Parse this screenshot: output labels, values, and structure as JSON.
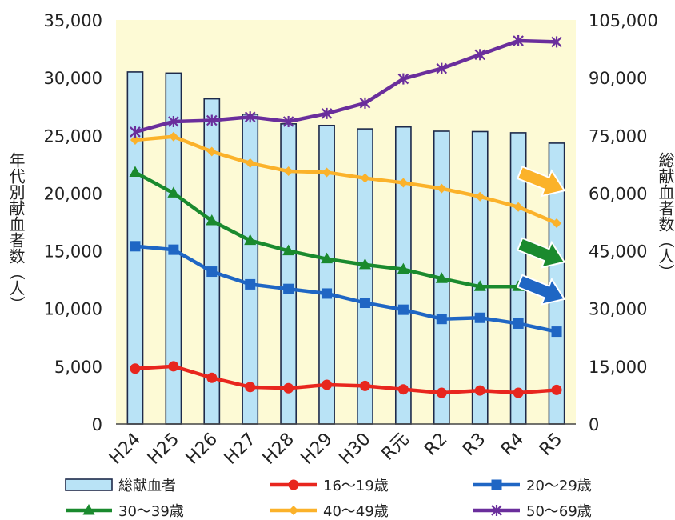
{
  "chart_data": {
    "type": "bar",
    "categories": [
      "H24",
      "H25",
      "H26",
      "H27",
      "H28",
      "H29",
      "H30",
      "R元",
      "R2",
      "R3",
      "R4",
      "R5"
    ],
    "left_axis": {
      "label": "年代別献血者数（人）",
      "ylim": [
        0,
        35000
      ],
      "ticks": [
        "0",
        "5,000",
        "10,000",
        "15,000",
        "20,000",
        "25,000",
        "30,000",
        "35,000"
      ],
      "tick_values": [
        0,
        5000,
        10000,
        15000,
        20000,
        25000,
        30000,
        35000
      ]
    },
    "right_axis": {
      "label": "総献血者数（人）",
      "ylim": [
        0,
        105000
      ],
      "ticks": [
        "0",
        "15,000",
        "30,000",
        "45,000",
        "60,000",
        "75,000",
        "90,000",
        "105,000"
      ],
      "tick_values": [
        0,
        15000,
        30000,
        45000,
        60000,
        75000,
        90000,
        105000
      ]
    },
    "bar_series": {
      "name": "総献血者",
      "axis": "right",
      "color": "#b9e3f6",
      "values": [
        91500,
        91200,
        84500,
        80500,
        78000,
        77600,
        76700,
        77200,
        76100,
        76000,
        75700,
        73000
      ]
    },
    "line_series": [
      {
        "name": "16～19歳",
        "color": "#e8261e",
        "marker": "circle",
        "values": [
          4800,
          5000,
          4000,
          3200,
          3100,
          3400,
          3300,
          3000,
          2700,
          2900,
          2700,
          2950
        ]
      },
      {
        "name": "20～29歳",
        "color": "#1f66c4",
        "marker": "square",
        "values": [
          15400,
          15100,
          13200,
          12100,
          11700,
          11300,
          10500,
          9900,
          9100,
          9200,
          8700,
          8000
        ]
      },
      {
        "name": "30～39歳",
        "color": "#1a8a2e",
        "marker": "triangle",
        "values": [
          21800,
          20000,
          17600,
          15900,
          15000,
          14300,
          13800,
          13400,
          12600,
          11900,
          11900,
          11200
        ]
      },
      {
        "name": "40～49歳",
        "color": "#fbb22a",
        "marker": "diamond",
        "values": [
          24600,
          24900,
          23600,
          22600,
          21900,
          21800,
          21300,
          20900,
          20400,
          19700,
          18800,
          17400
        ]
      },
      {
        "name": "50～69歳",
        "color": "#6a2e9c",
        "marker": "star",
        "values": [
          25300,
          26200,
          26300,
          26600,
          26200,
          26900,
          27800,
          29900,
          30800,
          32000,
          33200,
          33100
        ]
      }
    ],
    "trend_arrows": [
      {
        "series": "40～49歳",
        "color": "#fbb22a"
      },
      {
        "series": "30～39歳",
        "color": "#1a8a2e"
      },
      {
        "series": "20～29歳",
        "color": "#1f66c4"
      }
    ],
    "plot_background": "#fdfad5",
    "grid": false,
    "legend_position": "bottom"
  }
}
